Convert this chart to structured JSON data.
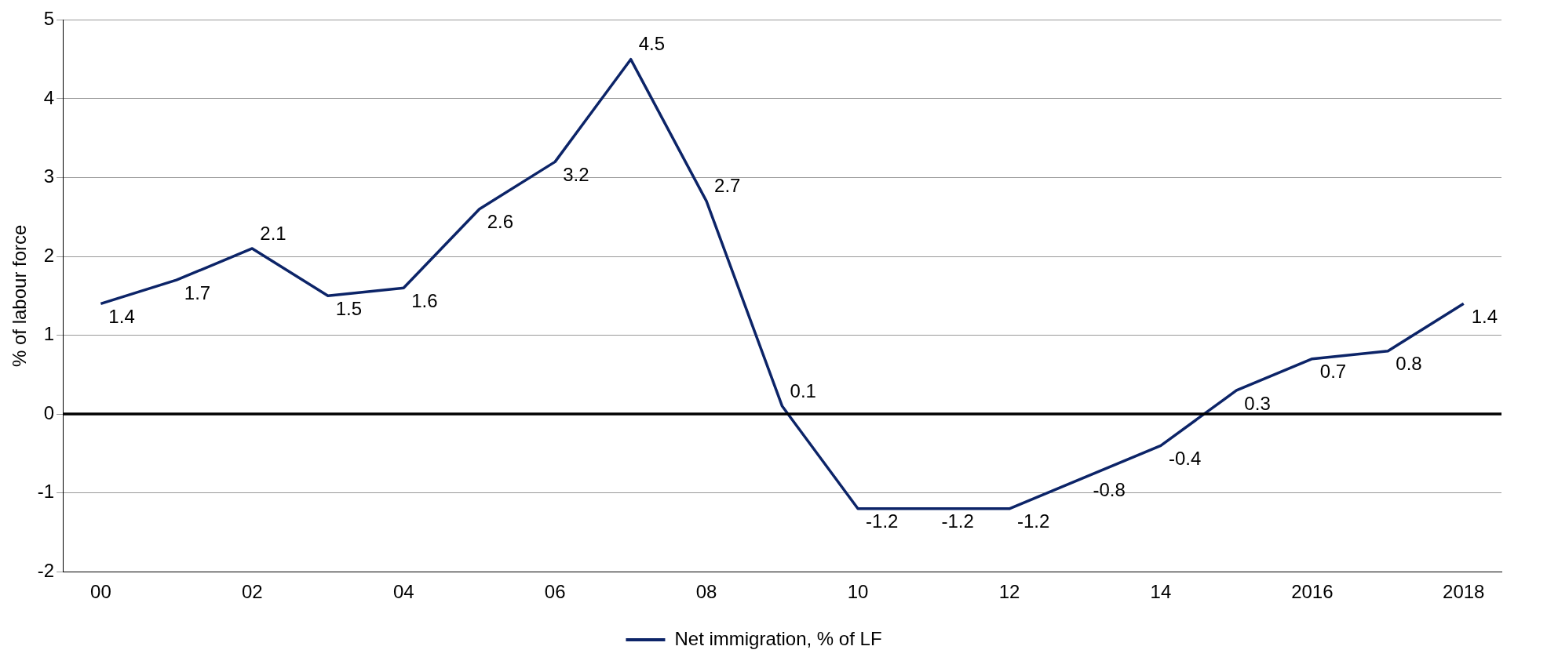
{
  "chart_data": {
    "type": "line",
    "ylabel": "% of labour force",
    "categories": [
      "00",
      null,
      "02",
      null,
      "04",
      null,
      "06",
      null,
      "08",
      null,
      "10",
      null,
      "12",
      null,
      "14",
      null,
      "2016",
      null,
      "2018"
    ],
    "series": [
      {
        "name": "Net immigration, % of LF",
        "color": "#0c2468",
        "values": [
          1.4,
          1.7,
          2.1,
          1.5,
          1.6,
          2.6,
          3.2,
          4.5,
          2.7,
          0.1,
          -1.2,
          -1.2,
          -1.2,
          -0.8,
          -0.4,
          0.3,
          0.7,
          0.8,
          1.4
        ]
      }
    ],
    "ylim": [
      -2,
      5
    ],
    "yticks": [
      -2,
      -1,
      0,
      1,
      2,
      3,
      4,
      5
    ],
    "grid": "y",
    "legend": "bottom",
    "data_labels": true,
    "marker": "none",
    "line_style": "solid",
    "ref_lines": [
      {
        "axis": "y",
        "value": 0,
        "color": "#000000"
      }
    ]
  }
}
